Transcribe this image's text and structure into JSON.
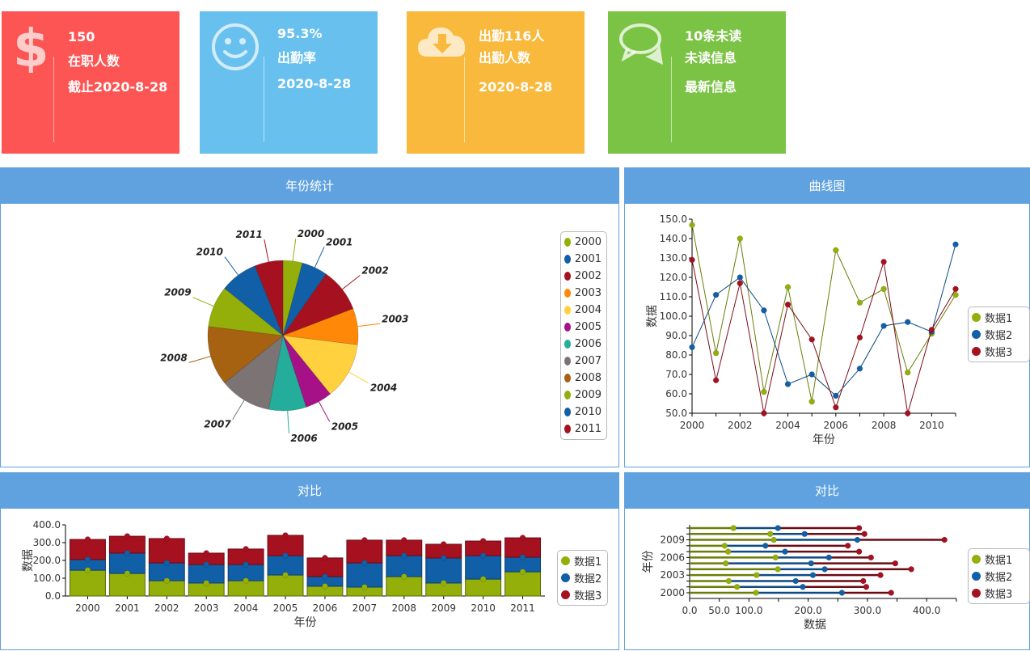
{
  "cards": [
    {
      "id": "staff",
      "color": "#fd5454",
      "icon": "dollar-icon",
      "line1": "150",
      "line2": "在职人数",
      "line3": "截止2020-8-28"
    },
    {
      "id": "attendance-rate",
      "color": "#68c0ee",
      "icon": "smiley-icon",
      "line1": "95.3%",
      "line2": "出勤率",
      "line3": "2020-8-28"
    },
    {
      "id": "attendance-count",
      "color": "#f9b93c",
      "icon": "cloud-download-icon",
      "line1": "出勤116人",
      "line2": "出勤人数",
      "line3": "2020-8-28"
    },
    {
      "id": "messages",
      "color": "#7bc344",
      "icon": "chat-bubbles-icon",
      "line1": "10条未读",
      "line2": "未读信息",
      "line3": "最新信息"
    }
  ],
  "panels": {
    "pie": {
      "title": "年份统计"
    },
    "line": {
      "title": "曲线图"
    },
    "bar": {
      "title": "对比"
    },
    "hbar": {
      "title": "对比"
    }
  },
  "palette": {
    "year_colors": [
      "#94ae0a",
      "#115fa6",
      "#a61120",
      "#ff8809",
      "#ffd13e",
      "#a61187",
      "#24ad9a",
      "#7c7474",
      "#a66111",
      "#94ae0a",
      "#115fa6",
      "#a61120"
    ],
    "series_colors": [
      "#94ae0a",
      "#115fa6",
      "#a61120"
    ]
  },
  "chart_data": [
    {
      "type": "pie",
      "title": "年份统计",
      "categories": [
        "2000",
        "2001",
        "2002",
        "2003",
        "2004",
        "2005",
        "2006",
        "2007",
        "2008",
        "2009",
        "2010",
        "2011"
      ],
      "values": [
        15,
        20,
        34,
        28,
        44,
        21,
        29,
        40,
        46,
        32,
        29,
        22
      ],
      "legend": "right"
    },
    {
      "type": "line",
      "title": "曲线图",
      "xlabel": "年份",
      "ylabel": "数据",
      "x": [
        2000,
        2001,
        2002,
        2003,
        2004,
        2005,
        2006,
        2007,
        2008,
        2009,
        2010,
        2011
      ],
      "xticks": [
        "2000",
        "2002",
        "2004",
        "2006",
        "2008",
        "2010"
      ],
      "yticks": [
        "50.0",
        "60.0",
        "70.0",
        "80.0",
        "90.0",
        "100.0",
        "110.0",
        "120.0",
        "130.0",
        "140.0",
        "150.0"
      ],
      "ylim": [
        50,
        150
      ],
      "series": [
        {
          "name": "数据1",
          "values": [
            147,
            81,
            140,
            61,
            115,
            56,
            134,
            107,
            114,
            71,
            91,
            111
          ]
        },
        {
          "name": "数据2",
          "values": [
            84,
            111,
            120,
            103,
            65,
            70,
            59,
            73,
            95,
            97,
            92,
            137
          ]
        },
        {
          "name": "数据3",
          "values": [
            129,
            67,
            117,
            50,
            106,
            88,
            53,
            89,
            128,
            50,
            93,
            114
          ]
        }
      ],
      "legend": "right"
    },
    {
      "type": "bar",
      "stacked": true,
      "title": "对比",
      "xlabel": "年份",
      "ylabel": "数据",
      "categories": [
        "2000",
        "2001",
        "2002",
        "2003",
        "2004",
        "2005",
        "2006",
        "2007",
        "2008",
        "2009",
        "2010",
        "2011"
      ],
      "yticks": [
        "0.0",
        "100.0",
        "200.0",
        "300.0",
        "400.0"
      ],
      "ylim": [
        0,
        400
      ],
      "series": [
        {
          "name": "数据1",
          "values": [
            145,
            127,
            86,
            73,
            86,
            118,
            55,
            50,
            109,
            73,
            95,
            136
          ]
        },
        {
          "name": "数据2",
          "values": [
            60,
            114,
            100,
            104,
            91,
            109,
            54,
            136,
            118,
            141,
            132,
            82
          ]
        },
        {
          "name": "数据3",
          "values": [
            113,
            95,
            137,
            64,
            87,
            114,
            105,
            128,
            87,
            77,
            82,
            109
          ]
        }
      ],
      "legend": "right"
    },
    {
      "type": "bar",
      "orientation": "horizontal",
      "stacked": true,
      "title": "对比",
      "xlabel": "数据",
      "ylabel": "年份",
      "categories": [
        "2000",
        "2001",
        "2002",
        "2003",
        "2004",
        "2005",
        "2006",
        "2007",
        "2008",
        "2009",
        "2010",
        "2011"
      ],
      "yticks": [
        "2000",
        "2003",
        "2006",
        "2009"
      ],
      "xticks": [
        "0.0",
        "50.0",
        "100.0",
        "200.0",
        "300.0",
        "400.0"
      ],
      "xlim": [
        0,
        450
      ],
      "series": [
        {
          "name": "数据1",
          "values": [
            112,
            80,
            66,
            113,
            149,
            61,
            145,
            65,
            59,
            142,
            136,
            74
          ]
        },
        {
          "name": "数据2",
          "values": [
            145,
            111,
            113,
            95,
            79,
            144,
            90,
            96,
            69,
            141,
            58,
            75
          ]
        },
        {
          "name": "数据3",
          "values": [
            83,
            107,
            114,
            114,
            146,
            142,
            71,
            125,
            139,
            147,
            101,
            137
          ]
        }
      ],
      "legend": "right"
    }
  ]
}
